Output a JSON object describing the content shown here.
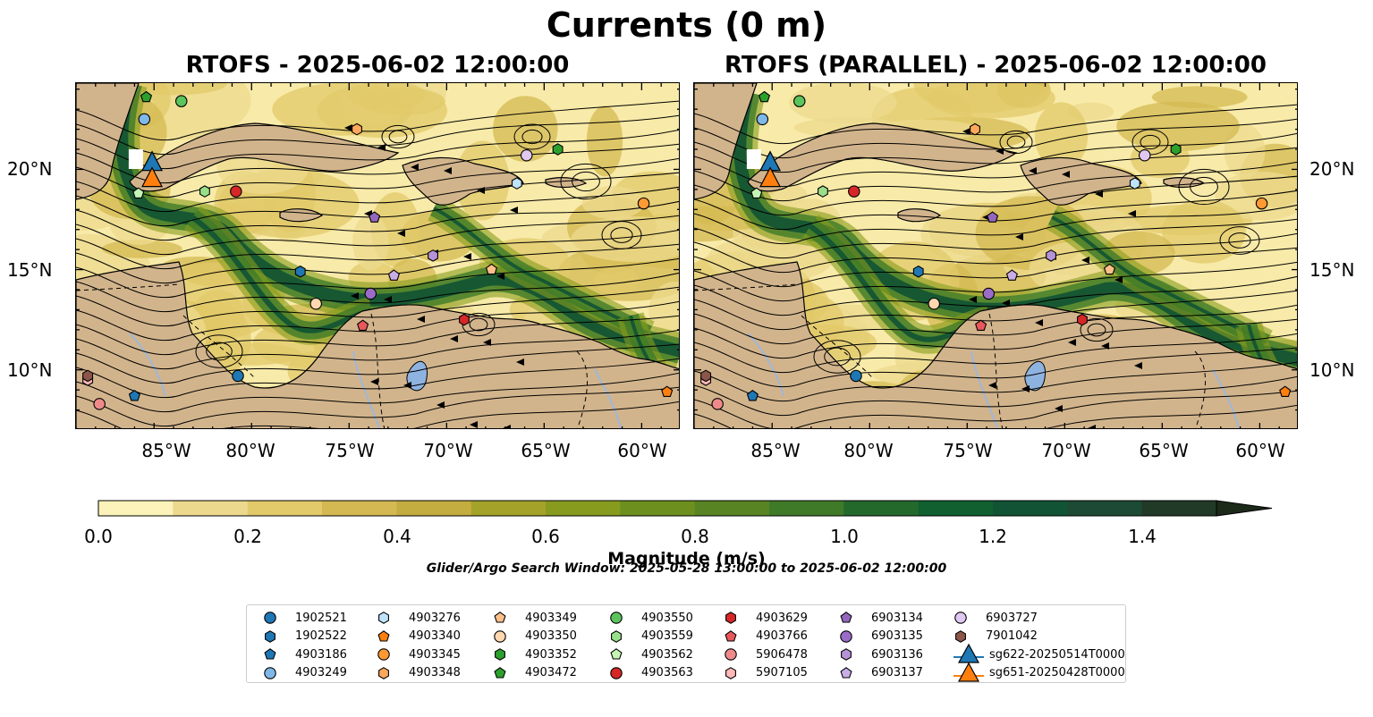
{
  "figure": {
    "title": "Currents (0 m)",
    "search_window": "Glider/Argo Search Window: 2025-05-28 13:00:00 to 2025-06-02 12:00:00"
  },
  "panels": [
    {
      "title": "RTOFS - 2025-06-02 12:00:00"
    },
    {
      "title": "RTOFS (PARALLEL) - 2025-06-02 12:00:00"
    }
  ],
  "map_extent": {
    "lon": [
      -89,
      -58
    ],
    "lat": [
      7,
      24.3
    ]
  },
  "lon_ticks": [
    "85°W",
    "80°W",
    "75°W",
    "70°W",
    "65°W",
    "60°W"
  ],
  "lat_ticks": [
    "20°N",
    "15°N",
    "10°N"
  ],
  "colorbar": {
    "label": "Magnitude (m/s)",
    "ticks": [
      "0.0",
      "0.2",
      "0.4",
      "0.6",
      "0.8",
      "1.0",
      "1.2",
      "1.4"
    ],
    "range": [
      0,
      1.5
    ],
    "extend": "max",
    "colors": [
      "#fbf3b9",
      "#ecd98e",
      "#e2c96a",
      "#d4b952",
      "#c4ad40",
      "#a5a22a",
      "#879c1e",
      "#6d8f1d",
      "#588423",
      "#3f7a28",
      "#24692c",
      "#106030",
      "#115334",
      "#1d4a35",
      "#213a27",
      "#1c2a1a"
    ]
  },
  "colors": {
    "land": "#d2b48c",
    "lake": "#8fb3e0",
    "river": "#9fb7d8",
    "ocean_low": "#f8eaa8"
  },
  "legend": {
    "items": [
      {
        "label": "1902521",
        "marker": "circle",
        "color": "#1f77b4"
      },
      {
        "label": "1902522",
        "marker": "hexagon",
        "color": "#1f77b4"
      },
      {
        "label": "4903186",
        "marker": "pentagon",
        "color": "#1f77b4"
      },
      {
        "label": "4903249",
        "marker": "circle",
        "color": "#7fb8e8"
      },
      {
        "label": "4903276",
        "marker": "hexagon",
        "color": "#bfe3fb"
      },
      {
        "label": "4903340",
        "marker": "pentagon",
        "color": "#ff7f0e"
      },
      {
        "label": "4903345",
        "marker": "circle",
        "color": "#ff9933"
      },
      {
        "label": "4903348",
        "marker": "hexagon",
        "color": "#ffa85c"
      },
      {
        "label": "4903349",
        "marker": "pentagon",
        "color": "#ffc08a"
      },
      {
        "label": "4903350",
        "marker": "circle",
        "color": "#ffd8b0"
      },
      {
        "label": "4903352",
        "marker": "hexagon",
        "color": "#2ca02c"
      },
      {
        "label": "4903472",
        "marker": "pentagon",
        "color": "#2ca02c"
      },
      {
        "label": "4903550",
        "marker": "circle",
        "color": "#5cc45c"
      },
      {
        "label": "4903559",
        "marker": "hexagon",
        "color": "#98df8a"
      },
      {
        "label": "4903562",
        "marker": "pentagon",
        "color": "#c5f5b5"
      },
      {
        "label": "4903563",
        "marker": "circle",
        "color": "#d62728"
      },
      {
        "label": "4903629",
        "marker": "hexagon",
        "color": "#d62728"
      },
      {
        "label": "4903766",
        "marker": "pentagon",
        "color": "#e8585a"
      },
      {
        "label": "5906478",
        "marker": "circle",
        "color": "#f08a8a"
      },
      {
        "label": "5907105",
        "marker": "hexagon",
        "color": "#ffb8b8"
      },
      {
        "label": "6903134",
        "marker": "pentagon",
        "color": "#9467bd"
      },
      {
        "label": "6903135",
        "marker": "circle",
        "color": "#9a6cc8"
      },
      {
        "label": "6903136",
        "marker": "hexagon",
        "color": "#b692d8"
      },
      {
        "label": "6903137",
        "marker": "pentagon",
        "color": "#c9aee6"
      },
      {
        "label": "6903727",
        "marker": "circle",
        "color": "#e0c8f2"
      },
      {
        "label": "7901042",
        "marker": "hexagon",
        "color": "#8c564b"
      },
      {
        "label": "sg622-20250514T0000",
        "marker": "triangle",
        "color": "#1f77b4"
      },
      {
        "label": "sg651-20250428T0000",
        "marker": "triangle",
        "color": "#ff7f0e"
      }
    ]
  },
  "floats": [
    {
      "id": "1902521",
      "lon": -80.7,
      "lat": 9.7
    },
    {
      "id": "1902522",
      "lon": -77.5,
      "lat": 14.9
    },
    {
      "id": "4903186",
      "lon": -86.0,
      "lat": 8.7
    },
    {
      "id": "4903249",
      "lon": -85.5,
      "lat": 22.5
    },
    {
      "id": "4903276",
      "lon": -66.4,
      "lat": 19.3
    },
    {
      "id": "4903340",
      "lon": -58.7,
      "lat": 8.9
    },
    {
      "id": "4903345",
      "lon": -59.9,
      "lat": 18.3
    },
    {
      "id": "4903348",
      "lon": -74.6,
      "lat": 22.0
    },
    {
      "id": "4903349",
      "lon": -67.7,
      "lat": 15.0
    },
    {
      "id": "4903350",
      "lon": -76.7,
      "lat": 13.3
    },
    {
      "id": "4903352",
      "lon": -64.3,
      "lat": 21.0
    },
    {
      "id": "4903472",
      "lon": -85.4,
      "lat": 23.6
    },
    {
      "id": "4903550",
      "lon": -83.6,
      "lat": 23.4
    },
    {
      "id": "4903559",
      "lon": -82.4,
      "lat": 18.9
    },
    {
      "id": "4903562",
      "lon": -85.8,
      "lat": 18.8
    },
    {
      "id": "4903563",
      "lon": -80.8,
      "lat": 18.9
    },
    {
      "id": "4903629",
      "lon": -69.1,
      "lat": 12.5
    },
    {
      "id": "4903766",
      "lon": -74.3,
      "lat": 12.2
    },
    {
      "id": "5906478",
      "lon": -87.8,
      "lat": 8.3
    },
    {
      "id": "5907105",
      "lon": -88.4,
      "lat": 9.5
    },
    {
      "id": "6903134",
      "lon": -73.7,
      "lat": 17.6
    },
    {
      "id": "6903135",
      "lon": -73.9,
      "lat": 13.8
    },
    {
      "id": "6903136",
      "lon": -70.7,
      "lat": 15.7
    },
    {
      "id": "6903137",
      "lon": -72.7,
      "lat": 14.7
    },
    {
      "id": "6903727",
      "lon": -65.9,
      "lat": 20.7
    },
    {
      "id": "7901042",
      "lon": -88.4,
      "lat": 9.7
    }
  ],
  "gliders": [
    {
      "id": "sg622-20250514T0000",
      "lon": -85.1,
      "lat": 20.3
    },
    {
      "id": "sg651-20250428T0000",
      "lon": -85.1,
      "lat": 19.5
    }
  ]
}
